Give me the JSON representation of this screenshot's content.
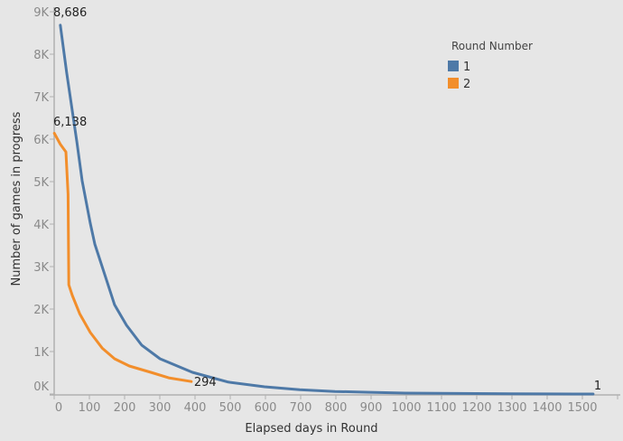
{
  "chart_data": {
    "type": "line",
    "title": "",
    "xlabel": "Elapsed days in Round",
    "ylabel": "Number of games in progress",
    "xlim": [
      0,
      1600
    ],
    "ylim": [
      0,
      9000
    ],
    "x_ticks": [
      0,
      100,
      200,
      300,
      400,
      500,
      600,
      700,
      800,
      900,
      1000,
      1100,
      1200,
      1300,
      1400,
      1500
    ],
    "x_tick_labels": [
      "0",
      "100",
      "200",
      "300",
      "400",
      "500",
      "600",
      "700",
      "800",
      "900",
      "1000",
      "1100",
      "1200",
      "1300",
      "1400",
      "1500"
    ],
    "y_ticks": [
      0,
      1000,
      2000,
      3000,
      4000,
      5000,
      6000,
      7000,
      8000,
      9000
    ],
    "y_tick_labels": [
      "0K",
      "1K",
      "2K",
      "3K",
      "4K",
      "5K",
      "6K",
      "7K",
      "8K",
      "9K"
    ],
    "grid": false,
    "legend": {
      "title": "Round Number",
      "placement": "top-right"
    },
    "series": [
      {
        "name": "1",
        "color": "#4e79a7",
        "points": [
          [
            20,
            8686
          ],
          [
            38,
            7570
          ],
          [
            67,
            5940
          ],
          [
            82,
            5020
          ],
          [
            105,
            4020
          ],
          [
            118,
            3530
          ],
          [
            149,
            2740
          ],
          [
            174,
            2100
          ],
          [
            208,
            1620
          ],
          [
            251,
            1150
          ],
          [
            303,
            830
          ],
          [
            395,
            510
          ],
          [
            497,
            280
          ],
          [
            600,
            170
          ],
          [
            700,
            100
          ],
          [
            800,
            60
          ],
          [
            900,
            40
          ],
          [
            1000,
            22
          ],
          [
            1100,
            15
          ],
          [
            1200,
            10
          ],
          [
            1300,
            6
          ],
          [
            1400,
            3
          ],
          [
            1533,
            1
          ]
        ],
        "labels": [
          {
            "x": 20,
            "y": 8686,
            "text": "8,686"
          },
          {
            "x": 1533,
            "y": 1,
            "text": "1"
          }
        ]
      },
      {
        "name": "2",
        "color": "#f28e2b",
        "points": [
          [
            3,
            6138
          ],
          [
            20,
            5880
          ],
          [
            36,
            5700
          ],
          [
            42,
            4700
          ],
          [
            44,
            2570
          ],
          [
            54,
            2320
          ],
          [
            75,
            1890
          ],
          [
            105,
            1450
          ],
          [
            139,
            1080
          ],
          [
            174,
            830
          ],
          [
            216,
            660
          ],
          [
            277,
            510
          ],
          [
            328,
            380
          ],
          [
            392,
            294
          ]
        ],
        "labels": [
          {
            "x": 3,
            "y": 6138,
            "text": "6,138"
          },
          {
            "x": 392,
            "y": 294,
            "text": "294"
          }
        ]
      }
    ]
  }
}
